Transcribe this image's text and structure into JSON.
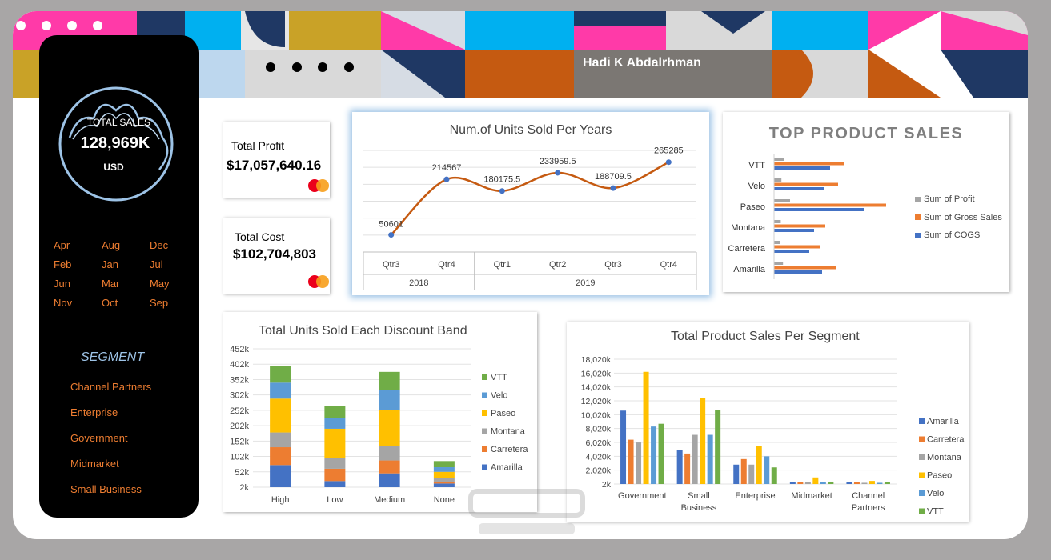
{
  "header": {
    "author": "Hadi K Abdalrhman"
  },
  "sidebar": {
    "total_sales_label": "TOTAL SALES",
    "total_sales_value": "128,969K",
    "total_sales_unit": "USD",
    "months": [
      "Apr",
      "Aug",
      "Dec",
      "Feb",
      "Jan",
      "Jul",
      "Jun",
      "Mar",
      "May",
      "Nov",
      "Oct",
      "Sep"
    ],
    "segment_title": "SEGMENT",
    "segments": [
      "Channel Partners",
      "Enterprise",
      "Government",
      "Midmarket",
      "Small Business"
    ]
  },
  "kpis": {
    "profit": {
      "label": "Total Profit",
      "value": "$17,057,640.16"
    },
    "cost": {
      "label": "Total Cost",
      "value": "$102,704,803"
    }
  },
  "colors": {
    "accent": "#ed7d31",
    "blue": "#4472c4",
    "gray": "#a5a5a5",
    "yellow": "#ffc000",
    "lightblue": "#5b9bd5",
    "green": "#70ad47"
  },
  "chart_data": [
    {
      "id": "units_per_year",
      "type": "line",
      "title": "Num.of Units Sold Per Years",
      "categories": [
        "Qtr3",
        "Qtr4",
        "Qtr1",
        "Qtr2",
        "Qtr3",
        "Qtr4"
      ],
      "groups": [
        {
          "label": "2018",
          "span": 2
        },
        {
          "label": "2019",
          "span": 4
        }
      ],
      "values": [
        50601,
        214567,
        180175.5,
        233959.5,
        188709.5,
        265285
      ],
      "data_labels": [
        "50601",
        "214567",
        "180175.5",
        "233959.5",
        "188709.5",
        "265285"
      ],
      "ylim": [
        0,
        300000
      ],
      "color": "#c55a11"
    },
    {
      "id": "top_product_sales",
      "type": "bar",
      "orientation": "horizontal",
      "title": "TOP PRODUCT SALES",
      "categories": [
        "VTT",
        "Velo",
        "Paseo",
        "Montana",
        "Carretera",
        "Amarilla"
      ],
      "series": [
        {
          "name": "Sum of Profit",
          "color": "#a5a5a5",
          "values": [
            3.0,
            2.3,
            5.0,
            2.1,
            1.8,
            2.8
          ]
        },
        {
          "name": "Sum of Gross Sales",
          "color": "#ed7d31",
          "values": [
            22.0,
            20.0,
            35.0,
            16.0,
            14.5,
            19.5
          ]
        },
        {
          "name": "Sum of COGS",
          "color": "#4472c4",
          "values": [
            17.5,
            15.5,
            28.0,
            12.5,
            11.0,
            15.0
          ]
        }
      ],
      "xlim": [
        0,
        35
      ]
    },
    {
      "id": "units_per_discount_band",
      "type": "bar",
      "stacked": true,
      "title": "Total Units Sold Each Discount Band",
      "categories": [
        "High",
        "Low",
        "Medium",
        "None"
      ],
      "yticks": [
        "2k",
        "52k",
        "102k",
        "152k",
        "202k",
        "252k",
        "302k",
        "352k",
        "402k",
        "452k"
      ],
      "ylim": [
        2000,
        452000
      ],
      "series": [
        {
          "name": "Amarilla",
          "color": "#4472c4",
          "values": [
            72000,
            20000,
            45000,
            12000
          ]
        },
        {
          "name": "Carretera",
          "color": "#ed7d31",
          "values": [
            58000,
            40000,
            42000,
            6000
          ]
        },
        {
          "name": "Montana",
          "color": "#a5a5a5",
          "values": [
            48000,
            35000,
            48000,
            12000
          ]
        },
        {
          "name": "Paseo",
          "color": "#ffc000",
          "values": [
            110000,
            95000,
            115000,
            20000
          ]
        },
        {
          "name": "Velo",
          "color": "#5b9bd5",
          "values": [
            52000,
            35000,
            65000,
            15000
          ]
        },
        {
          "name": "VTT",
          "color": "#70ad47",
          "values": [
            55000,
            40000,
            60000,
            20000
          ]
        }
      ]
    },
    {
      "id": "sales_per_segment",
      "type": "bar",
      "title": "Total Product Sales Per Segment",
      "categories": [
        "Government",
        "Small Business",
        "Enterprise",
        "Midmarket",
        "Channel Partners"
      ],
      "yticks": [
        "2k",
        "2,020k",
        "4,020k",
        "6,020k",
        "8,020k",
        "10,020k",
        "12,020k",
        "14,020k",
        "16,020k",
        "18,020k"
      ],
      "ylim": [
        2000,
        18020000
      ],
      "series": [
        {
          "name": "Amarilla",
          "color": "#4472c4",
          "values": [
            10600000,
            4900000,
            2800000,
            250000,
            250000
          ]
        },
        {
          "name": "Carretera",
          "color": "#ed7d31",
          "values": [
            6400000,
            4400000,
            3600000,
            320000,
            250000
          ]
        },
        {
          "name": "Montana",
          "color": "#a5a5a5",
          "values": [
            6000000,
            7100000,
            2800000,
            250000,
            180000
          ]
        },
        {
          "name": "Paseo",
          "color": "#ffc000",
          "values": [
            16200000,
            12400000,
            5500000,
            950000,
            450000
          ]
        },
        {
          "name": "Velo",
          "color": "#5b9bd5",
          "values": [
            8300000,
            7100000,
            4000000,
            250000,
            180000
          ]
        },
        {
          "name": "VTT",
          "color": "#70ad47",
          "values": [
            8700000,
            10700000,
            2400000,
            350000,
            250000
          ]
        }
      ]
    }
  ]
}
